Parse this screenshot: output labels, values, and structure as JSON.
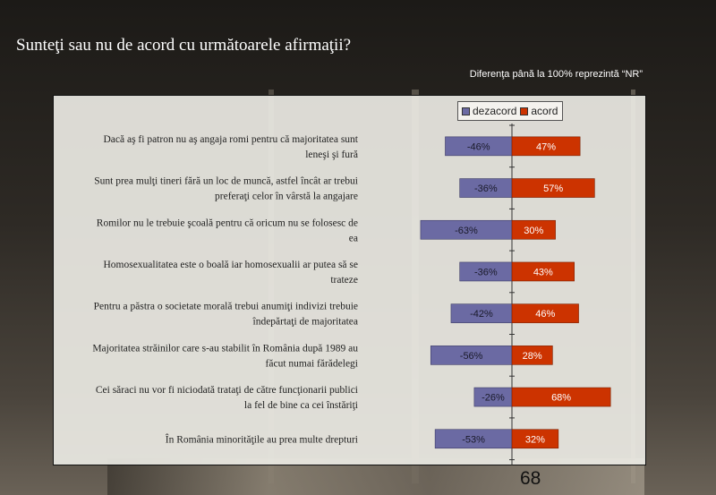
{
  "slide": {
    "title": "Sunteţi sau nu de acord cu următoarele afirmaţii?",
    "note": "Diferenţa până la 100% reprezintă  “NR”",
    "page_number": "68"
  },
  "colors": {
    "dezacord": "#6b6aa3",
    "acord": "#cc3300"
  },
  "chart_data": {
    "type": "bar",
    "orientation": "horizontal-diverging",
    "legend_position": "top-right",
    "categories": [
      "Dacă aş fi patron nu aş angaja romi pentru că majoritatea sunt leneşi şi fură",
      "Sunt prea mulţi tineri fără un loc de muncă, astfel încât ar trebui preferaţi celor în vârstă la angajare",
      "Romilor nu le trebuie şcoală pentru că oricum nu se folosesc de ea",
      "Homosexualitatea este o boală iar homosexualii ar putea să se trateze",
      "Pentru a păstra o societate morală trebui anumiţi indivizi trebuie îndepărtaţi de majoritatea",
      "Majoritatea străinilor care s-au stabilit în România după 1989 au făcut numai fărădelegi",
      "Cei săraci nu vor fi niciodată trataţi de către funcţionarii publici la fel de bine ca cei înstăriţi",
      "În România minorităţile au prea multe drepturi"
    ],
    "category_lines": [
      [
        "Dacă aş fi patron nu aş angaja romi pentru că majoritatea sunt",
        "leneşi şi fură"
      ],
      [
        "Sunt prea mulţi tineri fără un loc de muncă, astfel încât ar trebui",
        "preferaţi celor în vârstă la angajare"
      ],
      [
        "Romilor nu le trebuie şcoală pentru că oricum nu se folosesc de",
        "ea"
      ],
      [
        "Homosexualitatea este o boală iar homosexualii ar putea să se",
        "trateze"
      ],
      [
        "Pentru a păstra o societate morală trebui anumiţi indivizi trebuie",
        "îndepărtaţi de majoritatea"
      ],
      [
        "Majoritatea străinilor care s-au stabilit în România după 1989 au",
        "făcut numai fărădelegi"
      ],
      [
        "Cei săraci nu vor fi niciodată trataţi de către funcţionarii publici",
        "la fel de bine ca cei înstăriţi"
      ],
      [
        "În România minorităţile au prea multe drepturi"
      ]
    ],
    "series": [
      {
        "name": "dezacord",
        "values": [
          -46,
          -36,
          -63,
          -36,
          -42,
          -56,
          -26,
          -53
        ],
        "labels": [
          "-46%",
          "-36%",
          "-63%",
          "-36%",
          "-42%",
          "-56%",
          "-26%",
          "-53%"
        ]
      },
      {
        "name": "acord",
        "values": [
          47,
          57,
          30,
          43,
          46,
          28,
          68,
          32
        ],
        "labels": [
          "47%",
          "57%",
          "30%",
          "43%",
          "46%",
          "28%",
          "68%",
          "32%"
        ]
      }
    ]
  }
}
